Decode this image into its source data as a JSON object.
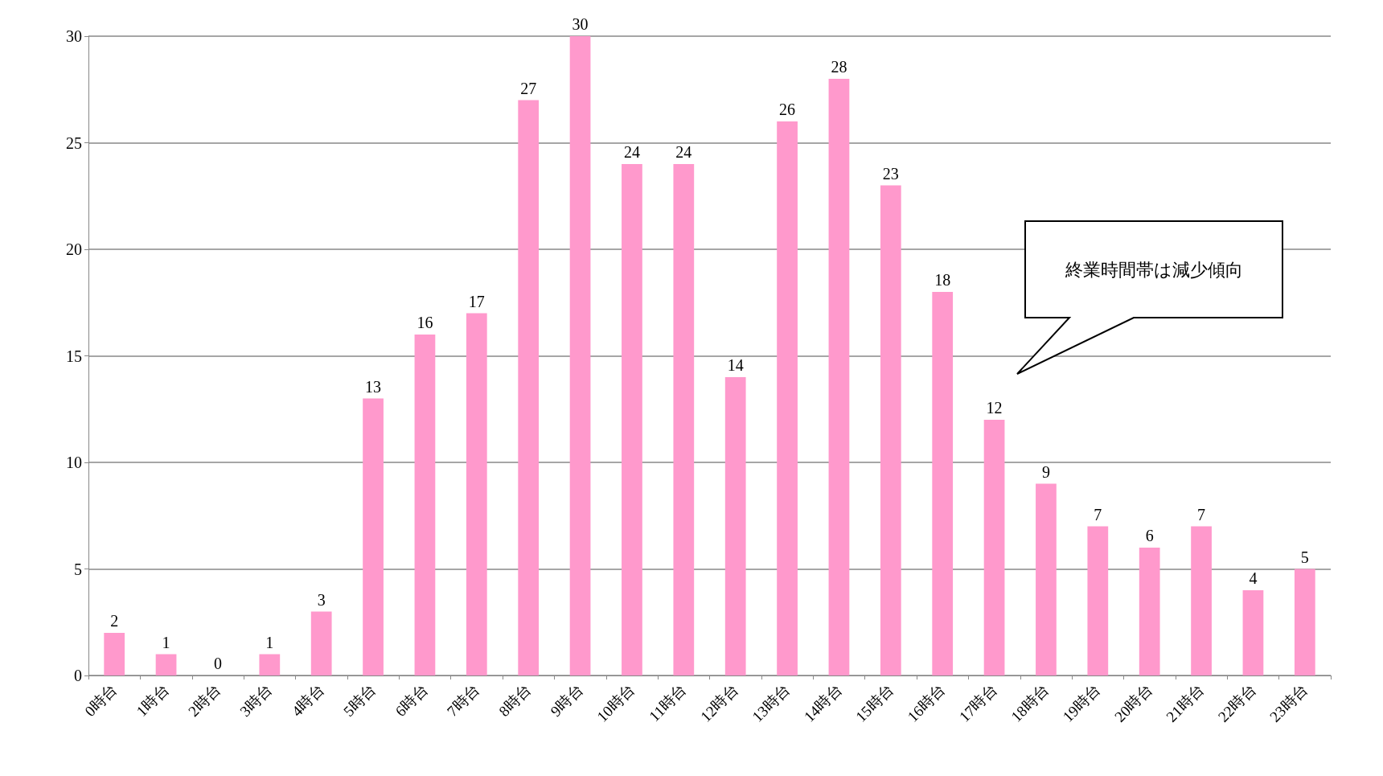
{
  "chart_data": {
    "type": "bar",
    "categories": [
      "0時台",
      "1時台",
      "2時台",
      "3時台",
      "4時台",
      "5時台",
      "6時台",
      "7時台",
      "8時台",
      "9時台",
      "10時台",
      "11時台",
      "12時台",
      "13時台",
      "14時台",
      "15時台",
      "16時台",
      "17時台",
      "18時台",
      "19時台",
      "20時台",
      "21時台",
      "22時台",
      "23時台"
    ],
    "values": [
      2,
      1,
      0,
      1,
      3,
      13,
      16,
      17,
      27,
      30,
      24,
      24,
      14,
      26,
      28,
      23,
      18,
      12,
      9,
      7,
      6,
      7,
      4,
      5
    ],
    "color": "#ff99cc",
    "ylim": [
      0,
      30
    ],
    "yticks": [
      0,
      5,
      10,
      15,
      20,
      25,
      30
    ],
    "grid": "y",
    "data_labels": true,
    "annotations": [
      "終業時間帯は減少傾向"
    ]
  }
}
